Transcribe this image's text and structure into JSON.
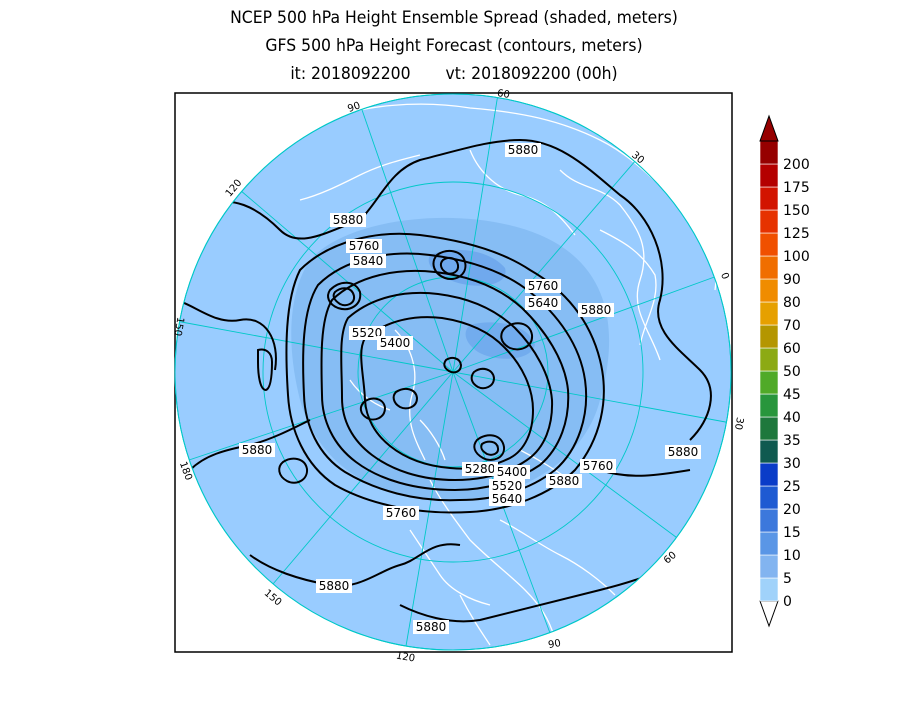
{
  "title": {
    "line1": "NCEP 500 hPa Height Ensemble Spread (shaded, meters)",
    "line2": "GFS 500 hPa Height Forecast (contours, meters)",
    "init_label": "it: 2018092200",
    "valid_label": "vt: 2018092200 (00h)"
  },
  "map": {
    "projection": "north polar stereographic",
    "longitude_labels": [
      "60",
      "30",
      "0",
      "30",
      "60",
      "90",
      "120",
      "150",
      "180",
      "150",
      "120",
      "90"
    ],
    "contour_labels": [
      "5880",
      "5880",
      "5760",
      "5840",
      "5760",
      "5640",
      "5880",
      "5520",
      "5400",
      "5880",
      "5280",
      "5400",
      "5520",
      "5640",
      "5760",
      "5880",
      "5880",
      "5760",
      "5880",
      "5880"
    ]
  },
  "colorbar": {
    "levels": [
      "0",
      "5",
      "10",
      "15",
      "20",
      "25",
      "30",
      "35",
      "40",
      "45",
      "50",
      "60",
      "70",
      "80",
      "90",
      "100",
      "125",
      "150",
      "175",
      "200"
    ],
    "colors": [
      "#a0d2fa",
      "#82b4f0",
      "#5a96e6",
      "#3c78dc",
      "#1e5ad2",
      "#0a3cc8",
      "#0f5a50",
      "#1e783c",
      "#28963c",
      "#50aa28",
      "#8caa14",
      "#b49600",
      "#e6a000",
      "#f08c00",
      "#f06e00",
      "#f05000",
      "#e63200",
      "#d21400",
      "#b40000",
      "#960000"
    ],
    "map_ocean_color": "#99ccff",
    "map_region_color": "#80b8f0"
  }
}
